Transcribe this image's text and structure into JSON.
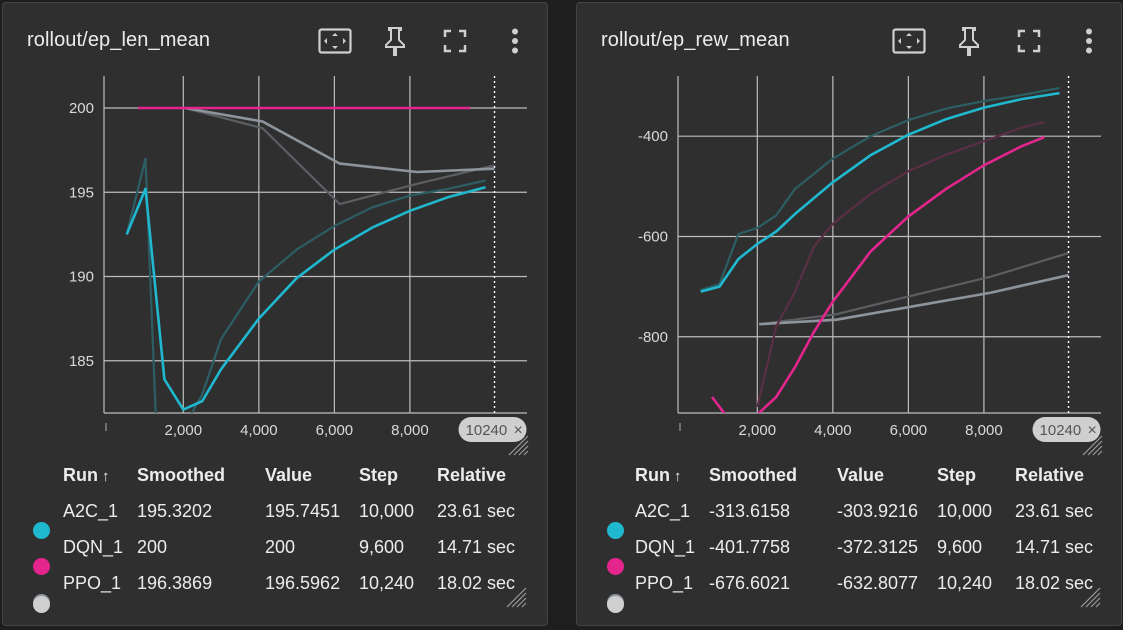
{
  "colors": {
    "A2C_1": "#1fb8cf",
    "DQN_1": "#e3258d",
    "PPO_1": "#8e949c",
    "PPO_1_raw": "#5b5e63",
    "A2C_1_raw": "#2c5e64",
    "DQN_1_raw": "#5a2e45",
    "card_bg": "#2f2f2f"
  },
  "icons": [
    "fit-domain-icon",
    "pin-icon",
    "fullscreen-icon",
    "more-vert-icon"
  ],
  "table": {
    "headers": {
      "run": "Run",
      "sort": "↑",
      "smoothed": "Smoothed",
      "value": "Value",
      "step": "Step",
      "relative": "Relative"
    }
  },
  "panels": [
    {
      "title": "rollout/ep_len_mean",
      "step_tag": "10240",
      "close": "×",
      "rows": [
        {
          "run": "A2C_1",
          "smoothed": "195.3202",
          "value": "195.7451",
          "step": "10,000",
          "relative": "23.61 sec"
        },
        {
          "run": "DQN_1",
          "smoothed": "200",
          "value": "200",
          "step": "9,600",
          "relative": "14.71 sec"
        },
        {
          "run": "PPO_1",
          "smoothed": "196.3869",
          "value": "196.5962",
          "step": "10,240",
          "relative": "18.02 sec"
        }
      ],
      "chart_data": {
        "type": "line",
        "x_ticks": [
          "2,000",
          "4,000",
          "6,000",
          "8,000"
        ],
        "y_ticks": [
          "200",
          "195",
          "190",
          "185"
        ],
        "xlim": [
          -100,
          11100
        ],
        "ylim": [
          181.9,
          201.9
        ],
        "x_tick_values": [
          2000,
          4000,
          6000,
          8000
        ],
        "y_tick_values": [
          200,
          195,
          190,
          185
        ],
        "cursor_step": 10240,
        "series": [
          {
            "name": "PPO_1",
            "raw": true,
            "points": [
              [
                2048,
                200
              ],
              [
                4096,
                198.8
              ],
              [
                6144,
                194.3
              ],
              [
                8192,
                195.5
              ],
              [
                10240,
                196.6
              ]
            ]
          },
          {
            "name": "PPO_1",
            "raw": false,
            "points": [
              [
                2048,
                200
              ],
              [
                4096,
                199.2
              ],
              [
                6144,
                196.7
              ],
              [
                8192,
                196.2
              ],
              [
                10240,
                196.4
              ]
            ]
          },
          {
            "name": "A2C_1",
            "raw": true,
            "points": [
              [
                500,
                192.5
              ],
              [
                1000,
                197
              ],
              [
                1300,
                180
              ],
              [
                1500,
                177
              ],
              [
                2000,
                181
              ],
              [
                2500,
                183
              ],
              [
                3000,
                186.3
              ],
              [
                4000,
                189.7
              ],
              [
                5000,
                191.6
              ],
              [
                6000,
                193
              ],
              [
                7000,
                194.1
              ],
              [
                8000,
                194.8
              ],
              [
                9000,
                195.2
              ],
              [
                10000,
                195.7
              ]
            ]
          },
          {
            "name": "A2C_1",
            "raw": false,
            "points": [
              [
                500,
                192.5
              ],
              [
                1000,
                195.2
              ],
              [
                1500,
                183.9
              ],
              [
                2000,
                182.1
              ],
              [
                2500,
                182.6
              ],
              [
                3000,
                184.5
              ],
              [
                4000,
                187.5
              ],
              [
                5000,
                189.9
              ],
              [
                6000,
                191.6
              ],
              [
                7000,
                192.9
              ],
              [
                8000,
                193.9
              ],
              [
                9000,
                194.7
              ],
              [
                10000,
                195.3
              ]
            ]
          },
          {
            "name": "DQN_1",
            "raw": false,
            "points": [
              [
                800,
                200
              ],
              [
                9600,
                200
              ]
            ]
          }
        ]
      }
    },
    {
      "title": "rollout/ep_rew_mean",
      "step_tag": "10240",
      "close": "×",
      "rows": [
        {
          "run": "A2C_1",
          "smoothed": "-313.6158",
          "value": "-303.9216",
          "step": "10,000",
          "relative": "23.61 sec"
        },
        {
          "run": "DQN_1",
          "smoothed": "-401.7758",
          "value": "-372.3125",
          "step": "9,600",
          "relative": "14.71 sec"
        },
        {
          "run": "PPO_1",
          "smoothed": "-676.6021",
          "value": "-632.8077",
          "step": "10,240",
          "relative": "18.02 sec"
        }
      ],
      "chart_data": {
        "type": "line",
        "x_ticks": [
          "2,000",
          "4,000",
          "6,000",
          "8,000"
        ],
        "y_ticks": [
          "-400",
          "-600",
          "-800"
        ],
        "xlim": [
          -100,
          11100
        ],
        "ylim": [
          -952,
          -280
        ],
        "x_tick_values": [
          2000,
          4000,
          6000,
          8000
        ],
        "y_tick_values": [
          -400,
          -600,
          -800
        ],
        "cursor_step": 10240,
        "series": [
          {
            "name": "PPO_1",
            "raw": true,
            "points": [
              [
                2048,
                -775
              ],
              [
                4096,
                -755
              ],
              [
                6144,
                -717
              ],
              [
                8192,
                -680
              ],
              [
                10240,
                -633
              ]
            ]
          },
          {
            "name": "PPO_1",
            "raw": false,
            "points": [
              [
                2048,
                -775
              ],
              [
                4096,
                -766
              ],
              [
                6144,
                -739
              ],
              [
                8192,
                -712
              ],
              [
                10240,
                -677
              ]
            ]
          },
          {
            "name": "DQN_1",
            "raw": true,
            "points": [
              [
                2000,
                -940
              ],
              [
                2500,
                -780
              ],
              [
                3000,
                -710
              ],
              [
                3500,
                -620
              ],
              [
                4000,
                -575
              ],
              [
                5000,
                -515
              ],
              [
                6000,
                -470
              ],
              [
                7000,
                -437
              ],
              [
                8000,
                -410
              ],
              [
                9000,
                -383
              ],
              [
                9600,
                -372
              ]
            ]
          },
          {
            "name": "DQN_1",
            "raw": false,
            "points": [
              [
                800,
                -920
              ],
              [
                1400,
                -980
              ],
              [
                2000,
                -955
              ],
              [
                2500,
                -920
              ],
              [
                3000,
                -860
              ],
              [
                3500,
                -790
              ],
              [
                4000,
                -730
              ],
              [
                5000,
                -630
              ],
              [
                6000,
                -560
              ],
              [
                7000,
                -505
              ],
              [
                8000,
                -458
              ],
              [
                9000,
                -420
              ],
              [
                9600,
                -402
              ]
            ]
          },
          {
            "name": "A2C_1",
            "raw": true,
            "points": [
              [
                500,
                -707
              ],
              [
                1000,
                -695
              ],
              [
                1500,
                -595
              ],
              [
                2000,
                -583
              ],
              [
                2500,
                -558
              ],
              [
                3000,
                -505
              ],
              [
                4000,
                -445
              ],
              [
                5000,
                -400
              ],
              [
                6000,
                -368
              ],
              [
                7000,
                -345
              ],
              [
                8000,
                -330
              ],
              [
                9000,
                -318
              ],
              [
                10000,
                -304
              ]
            ]
          },
          {
            "name": "A2C_1",
            "raw": false,
            "points": [
              [
                500,
                -710
              ],
              [
                1000,
                -700
              ],
              [
                1500,
                -645
              ],
              [
                2000,
                -615
              ],
              [
                2500,
                -590
              ],
              [
                3000,
                -555
              ],
              [
                4000,
                -492
              ],
              [
                5000,
                -438
              ],
              [
                6000,
                -397
              ],
              [
                7000,
                -366
              ],
              [
                8000,
                -343
              ],
              [
                9000,
                -326
              ],
              [
                10000,
                -314
              ]
            ]
          }
        ]
      }
    }
  ]
}
